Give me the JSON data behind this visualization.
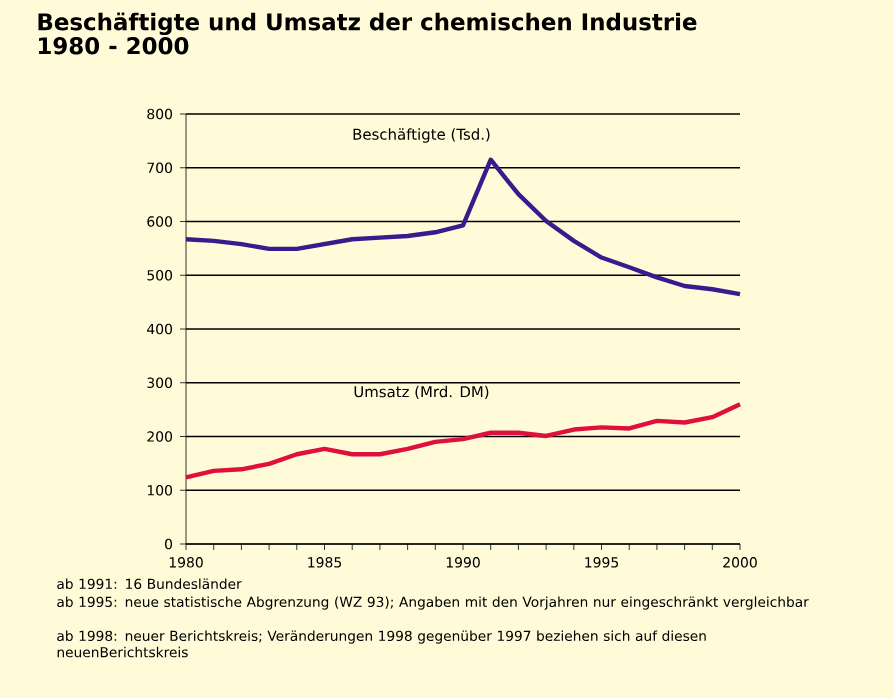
{
  "chart_data": {
    "type": "line",
    "title": "Beschäftigte und Umsatz der chemischen Industrie",
    "subtitle": "1980 - 2000",
    "x": [
      1980,
      1981,
      1982,
      1983,
      1984,
      1985,
      1986,
      1987,
      1988,
      1989,
      1990,
      1991,
      1992,
      1993,
      1994,
      1995,
      1996,
      1997,
      1998,
      1999,
      2000
    ],
    "series": [
      {
        "name": "Beschäftigte (Tsd.)",
        "color": "#3a1a8c",
        "values": [
          567,
          564,
          558,
          549,
          549,
          558,
          567,
          570,
          573,
          580,
          593,
          715,
          651,
          601,
          564,
          533,
          515,
          496,
          480,
          474,
          465
        ]
      },
      {
        "name": "Umsatz (Mrd. DM)",
        "color": "#e0103c",
        "values": [
          124,
          136,
          139,
          149,
          167,
          177,
          167,
          167,
          177,
          190,
          195,
          207,
          207,
          201,
          213,
          217,
          215,
          229,
          226,
          236,
          260
        ]
      }
    ],
    "xlim": [
      1980,
      2000
    ],
    "xticks": [
      1980,
      {
        "value": 1981,
        "label": null
      },
      {
        "value": 1982,
        "label": null
      },
      {
        "value": 1983,
        "label": null
      },
      {
        "value": 1984,
        "label": null
      },
      1985,
      {
        "value": 1986,
        "label": null
      },
      {
        "value": 1987,
        "label": null
      },
      {
        "value": 1988,
        "label": null
      },
      {
        "value": 1989,
        "label": null
      },
      1990,
      {
        "value": 1991,
        "label": null
      },
      {
        "value": 1992,
        "label": null
      },
      {
        "value": 1993,
        "label": null
      },
      {
        "value": 1994,
        "label": null
      },
      1995,
      {
        "value": 1996,
        "label": null
      },
      {
        "value": 1997,
        "label": null
      },
      {
        "value": 1998,
        "label": null
      },
      {
        "value": 1999,
        "label": null
      },
      2000
    ],
    "ylim": [
      0,
      800
    ],
    "yticks": [
      0,
      100,
      200,
      300,
      400,
      500,
      600,
      700,
      800
    ],
    "grid": "y",
    "marker": "none",
    "line_style": "solid",
    "annotations": [
      "ab 1991: 16 Bundesländer",
      "ab 1995: neue statistische Abgrenzung (WZ 93); Angaben mit den Vorjahren nur eingeschränkt vergleichbar",
      "ab 1998: neuer Berichtskreis; Veränderungen 1998 gegenüber 1997 beziehen sich auf diesen neuenBerichtskreis"
    ]
  }
}
